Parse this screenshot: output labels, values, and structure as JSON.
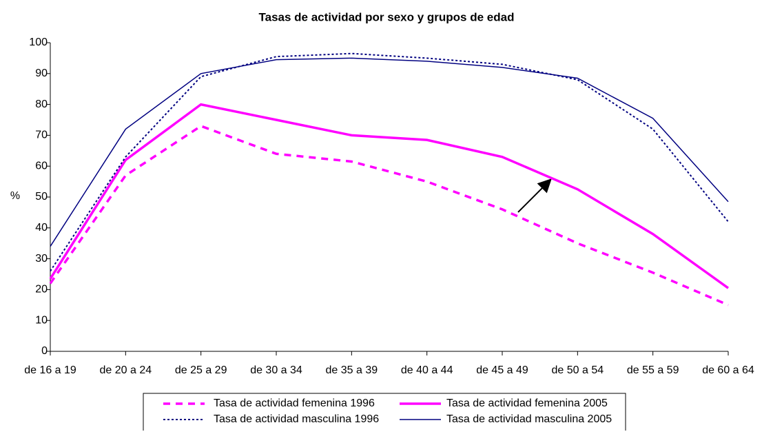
{
  "chart_data": {
    "type": "line",
    "title": "Tasas de actividad por sexo y grupos de edad",
    "y_label": "%",
    "categories": [
      "de 16 a 19",
      "de 20 a 24",
      "de 25 a 29",
      "de 30 a 34",
      "de 35 a 39",
      "de 40 a 44",
      "de 45 a 49",
      "de 50 a 54",
      "de 55 a 59",
      "de 60 a 64"
    ],
    "series": [
      {
        "name": "Tasa de actividad femenina 1996",
        "color": "#ff00ff",
        "dash": "10 8",
        "width": 3.5,
        "values": [
          22,
          57,
          73,
          64,
          61.5,
          55,
          46,
          35,
          25.5,
          15
        ]
      },
      {
        "name": "Tasa de actividad femenina 2005",
        "color": "#ff00ff",
        "dash": "none",
        "width": 3.5,
        "values": [
          23.5,
          62,
          80,
          75,
          70,
          68.5,
          63,
          52.5,
          38,
          20.5
        ]
      },
      {
        "name": "Tasa de actividad masculina 1996",
        "color": "#000080",
        "dash": "3 3",
        "width": 2,
        "values": [
          26,
          63,
          89,
          95.5,
          96.5,
          95,
          93,
          88,
          72,
          42
        ]
      },
      {
        "name": "Tasa de actividad masculina 2005",
        "color": "#000080",
        "dash": "none",
        "width": 1.5,
        "values": [
          34,
          72,
          90,
          94.5,
          95,
          94,
          92,
          88.5,
          75.5,
          48.5
        ]
      }
    ],
    "ylim": [
      0,
      100
    ],
    "yticks": [
      0,
      10,
      20,
      30,
      40,
      50,
      60,
      70,
      80,
      90,
      100
    ],
    "grid": false,
    "legend": "bottom"
  }
}
